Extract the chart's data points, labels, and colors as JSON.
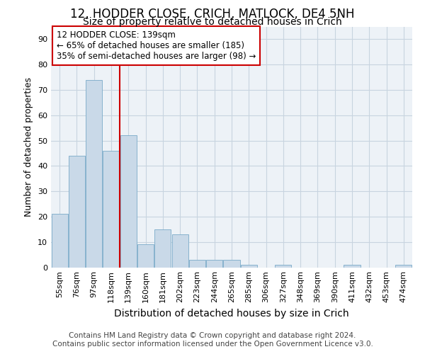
{
  "title": "12, HODDER CLOSE, CRICH, MATLOCK, DE4 5NH",
  "subtitle": "Size of property relative to detached houses in Crich",
  "xlabel": "Distribution of detached houses by size in Crich",
  "ylabel": "Number of detached properties",
  "categories": [
    "55sqm",
    "76sqm",
    "97sqm",
    "118sqm",
    "139sqm",
    "160sqm",
    "181sqm",
    "202sqm",
    "223sqm",
    "244sqm",
    "265sqm",
    "285sqm",
    "306sqm",
    "327sqm",
    "348sqm",
    "369sqm",
    "390sqm",
    "411sqm",
    "432sqm",
    "453sqm",
    "474sqm"
  ],
  "values": [
    21,
    44,
    74,
    46,
    52,
    9,
    15,
    13,
    3,
    3,
    3,
    1,
    0,
    1,
    0,
    0,
    0,
    1,
    0,
    0,
    1
  ],
  "bar_color": "#c9d9e8",
  "bar_edge_color": "#7aaac8",
  "vline_color": "#cc0000",
  "vline_x": 3.5,
  "annotation_text": "12 HODDER CLOSE: 139sqm\n← 65% of detached houses are smaller (185)\n35% of semi-detached houses are larger (98) →",
  "annotation_box_color": "#ffffff",
  "annotation_box_edge_color": "#cc0000",
  "ylim": [
    0,
    95
  ],
  "yticks": [
    0,
    10,
    20,
    30,
    40,
    50,
    60,
    70,
    80,
    90
  ],
  "grid_color": "#c8d4e0",
  "bg_color": "#edf2f7",
  "footer1": "Contains HM Land Registry data © Crown copyright and database right 2024.",
  "footer2": "Contains public sector information licensed under the Open Government Licence v3.0.",
  "title_fontsize": 12,
  "subtitle_fontsize": 10,
  "xlabel_fontsize": 10,
  "ylabel_fontsize": 9,
  "tick_fontsize": 8,
  "annotation_fontsize": 8.5,
  "footer_fontsize": 7.5
}
